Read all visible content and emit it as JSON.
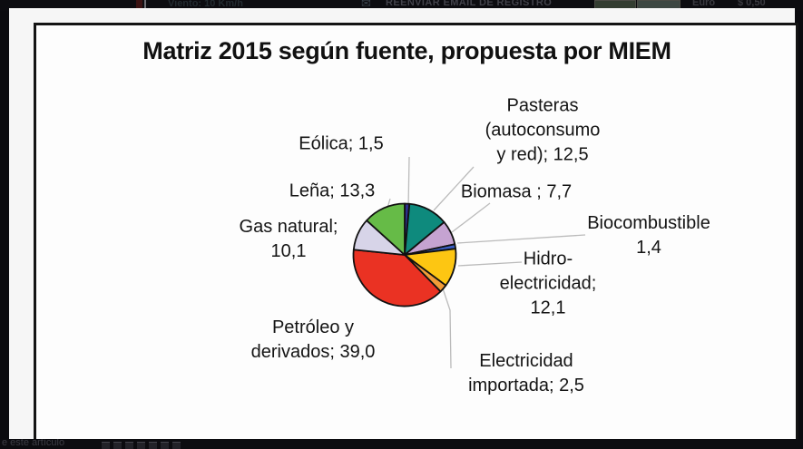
{
  "top_strip": {
    "weather_text": "Viento: 10 Km/h",
    "envelope_icon": "envelope",
    "reenviar_label": "REENVIAR EMAIL DE REGISTRO",
    "euro_label": "Euro",
    "price_label": "$ 0,50"
  },
  "bottom_strip": {
    "article_text": "e este artículo"
  },
  "chart_data": {
    "type": "pie",
    "title": "Matriz 2015 según fuente, propuesta por MIEM",
    "unit": "percent",
    "start_angle": "top",
    "direction": "clockwise",
    "legend_position": "none",
    "label_style": "outside with leader lines",
    "categories": [
      "Eólica",
      "Pasteras (autoconsumo y red)",
      "Biomasa",
      "Biocombustible",
      "Hidroelectricidad",
      "Electricidad importada",
      "Petróleo y derivados",
      "Gas natural",
      "Leña"
    ],
    "values": [
      1.5,
      12.5,
      7.7,
      1.4,
      12.1,
      2.5,
      39.0,
      10.1,
      13.3
    ],
    "colors": [
      "#2B2E8C",
      "#0E8A7D",
      "#C5A3D1",
      "#3A5FC8",
      "#FDC612",
      "#F29C38",
      "#EA3223",
      "#D7D4E8",
      "#66BB47"
    ],
    "slice_outline_color": "#111111",
    "leader_line_color": "#BBBBBB",
    "labels": {
      "eolica": {
        "text": "Eólica; 1,5"
      },
      "lena": {
        "text": "Leña; 13,3"
      },
      "gas_natural": {
        "text": "Gas natural;\n10,1"
      },
      "pasteras": {
        "text": "Pasteras\n(autoconsumo\ny red); 12,5"
      },
      "biomasa": {
        "text": "Biomasa ; 7,7"
      },
      "biocombustible": {
        "text": "Biocombustible\n1,4"
      },
      "hidroelectricidad": {
        "text": "Hidro-\nelectricidad;\n12,1"
      },
      "petroleo": {
        "text": "Petróleo y\nderivados; 39,0"
      },
      "electricidad_importada": {
        "text": "Electricidad\nimportada; 2,5"
      }
    }
  }
}
